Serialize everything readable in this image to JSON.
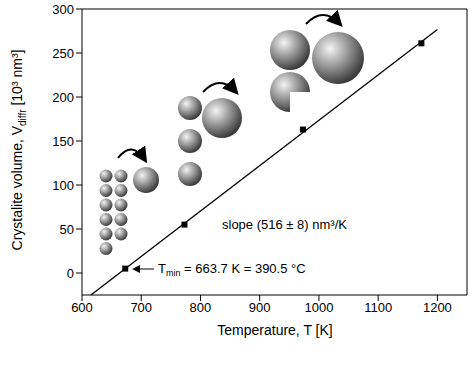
{
  "chart_data": {
    "type": "scatter",
    "x_label": "Temperature, T [K]",
    "y_label": {
      "text": "Crystalite volume, V",
      "subscript": "diffr",
      "unit": "[10³ nm³]"
    },
    "x": [
      673,
      773,
      973,
      1173
    ],
    "values": [
      5,
      55,
      163,
      261
    ],
    "color": "#000000",
    "marker": "square",
    "fit": {
      "x": [
        615,
        1200
      ],
      "values": [
        -25,
        276.7
      ],
      "color": "#000000",
      "line_style": "solid"
    },
    "xlim": [
      600,
      1250
    ],
    "ylim": [
      -25,
      300
    ],
    "xticks": [
      600,
      700,
      800,
      900,
      1000,
      1100,
      1200
    ],
    "yticks": [
      0,
      50,
      100,
      150,
      200,
      250,
      300
    ],
    "annotations": [
      {
        "text": "slope (516 ± 8) nm³/K"
      },
      {
        "text": "T",
        "subscript": "min",
        "rest": " = 663.7 K = 390.5 °C"
      }
    ]
  }
}
